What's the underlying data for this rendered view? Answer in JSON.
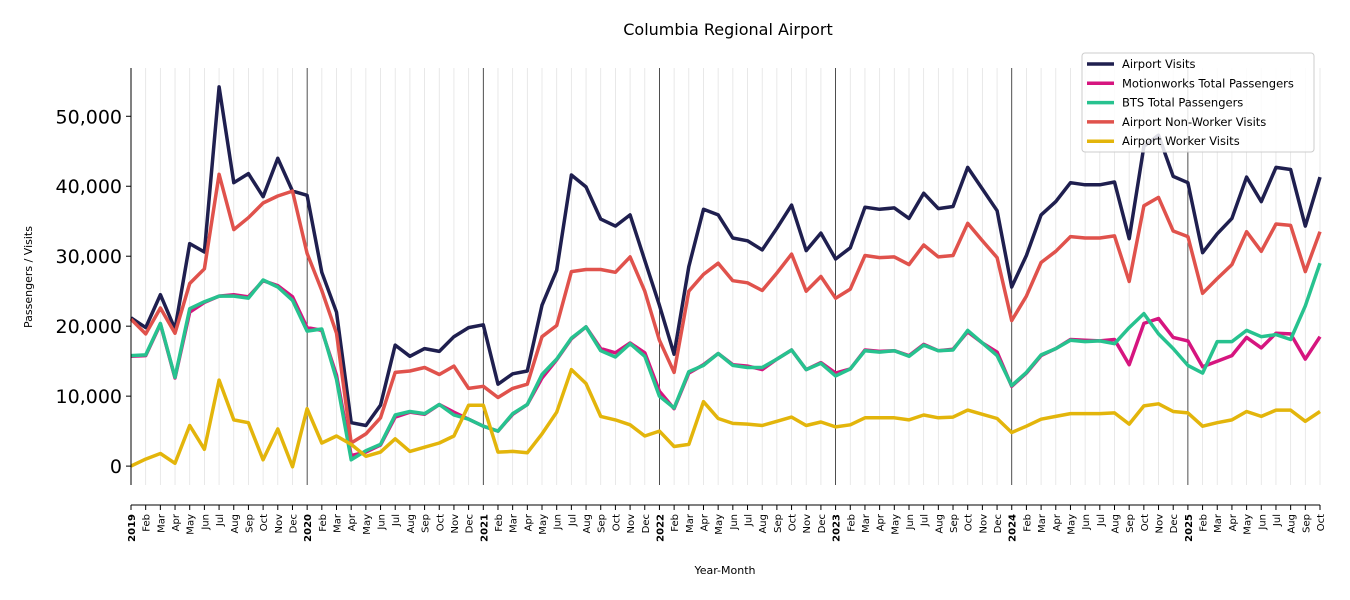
{
  "chart_data": {
    "type": "line",
    "title": "Columbia Regional Airport",
    "xlabel": "Year-Month",
    "ylabel": "Passengers / Visits",
    "ylim": [
      -2700,
      56900
    ],
    "yticks": [
      0,
      10000,
      20000,
      30000,
      40000,
      50000
    ],
    "ytick_labels": [
      "0",
      "10,000",
      "20,000",
      "30,000",
      "40,000",
      "50,000"
    ],
    "grid": "vertical monthly lines; darker lines at each January",
    "legend_position": "top-right",
    "start": "2019-01",
    "month_labels": [
      "Jan",
      "Feb",
      "Mar",
      "Apr",
      "May",
      "Jun",
      "Jul",
      "Aug",
      "Sep",
      "Oct",
      "Nov",
      "Dec"
    ],
    "years": [
      "2019",
      "2020",
      "2021",
      "2022",
      "2023",
      "2024",
      "2025"
    ],
    "series": [
      {
        "name": "Airport Visits",
        "color": "#1f1f4f",
        "values": [
          21200,
          19800,
          24500,
          19600,
          31800,
          30600,
          54200,
          40500,
          41800,
          38500,
          44000,
          39300,
          38700,
          27700,
          22000,
          6200,
          5800,
          8700,
          17300,
          15700,
          16800,
          16400,
          18500,
          19800,
          20200,
          11700,
          13200,
          13600,
          23000,
          28000,
          41600,
          39900,
          35300,
          34300,
          35900,
          29400,
          23000,
          16000,
          28500,
          36700,
          35900,
          32600,
          32200,
          30900,
          34000,
          37300,
          30800,
          33300,
          29600,
          31200,
          37000,
          36700,
          36900,
          35400,
          39000,
          36800,
          37100,
          42700,
          39600,
          36500,
          25600,
          30100,
          35900,
          37800,
          40500,
          40200,
          40200,
          40600,
          32500,
          45700,
          47300,
          41400,
          40500,
          30500,
          33200,
          35400,
          41300,
          37800,
          42700,
          42400,
          34300,
          41300
        ]
      },
      {
        "name": "Motionworks Total Passengers",
        "color": "#d6157f",
        "values": [
          15700,
          15800,
          20300,
          12600,
          22000,
          23400,
          24300,
          24500,
          24200,
          26500,
          25800,
          24200,
          19800,
          19400,
          13000,
          1500,
          2000,
          3000,
          7000,
          7700,
          7400,
          8800,
          7700,
          6700,
          5700,
          5000,
          7400,
          8800,
          12600,
          15200,
          18200,
          19900,
          16800,
          16200,
          17600,
          16200,
          10700,
          8200,
          13300,
          14500,
          16100,
          14500,
          14300,
          13800,
          15300,
          16600,
          13800,
          14800,
          13300,
          13900,
          16600,
          16400,
          16500,
          15800,
          17400,
          16500,
          16700,
          19200,
          17600,
          16300,
          11400,
          13300,
          15800,
          16800,
          18100,
          18000,
          17900,
          18100,
          14500,
          20400,
          21100,
          18400,
          17900,
          14200,
          15000,
          15800,
          18400,
          16900,
          19000,
          18900,
          15300,
          18500
        ]
      },
      {
        "name": "BTS Total Passengers",
        "color": "#27c28f",
        "values": [
          15800,
          15900,
          20400,
          12700,
          22500,
          23500,
          24300,
          24300,
          24000,
          26600,
          25600,
          23700,
          19300,
          19600,
          12400,
          900,
          2200,
          3100,
          7300,
          7800,
          7500,
          8800,
          7300,
          6700,
          5700,
          5000,
          7500,
          8800,
          13100,
          15300,
          18300,
          19900,
          16500,
          15600,
          17500,
          15700,
          10000,
          8300,
          13500,
          14400,
          16100,
          14400,
          14100,
          14100,
          15300,
          16600,
          13800,
          14700,
          12900,
          13900,
          16500,
          16300,
          16500,
          15700,
          17300,
          16500,
          16600,
          19400,
          17600,
          15800,
          11500,
          13400,
          15900,
          16800,
          18000,
          17800,
          17900,
          17500,
          19800,
          21800,
          18900,
          16800,
          14400,
          13300,
          17800,
          17800,
          19400,
          18500,
          18800,
          18100,
          22900,
          29000
        ]
      },
      {
        "name": "Airport Non-Worker Visits",
        "color": "#e0524c",
        "values": [
          21000,
          18900,
          22600,
          19000,
          26100,
          28200,
          41700,
          33800,
          35500,
          37600,
          38600,
          39300,
          30400,
          25100,
          19000,
          3300,
          4600,
          6900,
          13400,
          13600,
          14100,
          13100,
          14300,
          11100,
          11400,
          9800,
          11100,
          11700,
          18500,
          20100,
          27800,
          28100,
          28100,
          27700,
          29900,
          25000,
          18000,
          13400,
          25000,
          27400,
          29000,
          26500,
          26200,
          25100,
          27600,
          30300,
          25000,
          27100,
          24000,
          25300,
          30100,
          29800,
          29900,
          28800,
          31600,
          29900,
          30100,
          34700,
          32200,
          29800,
          20800,
          24300,
          29100,
          30700,
          32800,
          32600,
          32600,
          32900,
          26400,
          37200,
          38400,
          33600,
          32800,
          24700,
          26800,
          28800,
          33500,
          30700,
          34600,
          34400,
          27800,
          33500
        ]
      },
      {
        "name": "Airport Worker Visits",
        "color": "#e3b50b",
        "values": [
          0,
          1000,
          1800,
          400,
          5800,
          2400,
          12300,
          6600,
          6200,
          900,
          5300,
          -100,
          8200,
          3300,
          4300,
          3100,
          1400,
          2000,
          3900,
          2100,
          2700,
          3300,
          4300,
          8700,
          8700,
          2000,
          2100,
          1900,
          4600,
          7700,
          13800,
          11800,
          7100,
          6600,
          5900,
          4300,
          5000,
          2800,
          3100,
          9200,
          6800,
          6100,
          6000,
          5800,
          6400,
          7000,
          5800,
          6300,
          5600,
          5900,
          6900,
          6900,
          6900,
          6600,
          7300,
          6900,
          7000,
          8000,
          7400,
          6800,
          4800,
          5700,
          6700,
          7100,
          7500,
          7500,
          7500,
          7600,
          6000,
          8600,
          8900,
          7800,
          7600,
          5700,
          6200,
          6600,
          7800,
          7100,
          8000,
          8000,
          6400,
          7800
        ]
      }
    ]
  }
}
